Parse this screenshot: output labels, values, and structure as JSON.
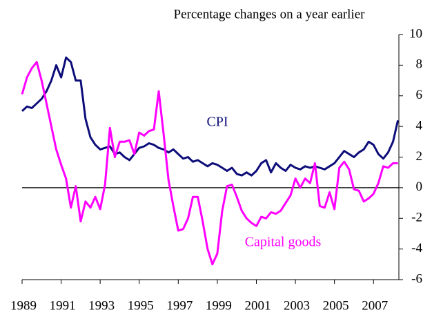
{
  "chart_data": {
    "type": "line",
    "title": "Percentage changes on a year earlier",
    "x": [
      1989,
      1989.25,
      1989.5,
      1989.75,
      1990,
      1990.25,
      1990.5,
      1990.75,
      1991,
      1991.25,
      1991.5,
      1991.75,
      1992,
      1992.25,
      1992.5,
      1992.75,
      1993,
      1993.25,
      1993.5,
      1993.75,
      1994,
      1994.25,
      1994.5,
      1994.75,
      1995,
      1995.25,
      1995.5,
      1995.75,
      1996,
      1996.25,
      1996.5,
      1996.75,
      1997,
      1997.25,
      1997.5,
      1997.75,
      1998,
      1998.25,
      1998.5,
      1998.75,
      1999,
      1999.25,
      1999.5,
      1999.75,
      2000,
      2000.25,
      2000.5,
      2000.75,
      2001,
      2001.25,
      2001.5,
      2001.75,
      2002,
      2002.25,
      2002.5,
      2002.75,
      2003,
      2003.25,
      2003.5,
      2003.75,
      2004,
      2004.25,
      2004.5,
      2004.75,
      2005,
      2005.25,
      2005.5,
      2005.75,
      2006,
      2006.25,
      2006.5,
      2006.75,
      2007,
      2007.25,
      2007.5,
      2007.75,
      2008,
      2008.25
    ],
    "series": [
      {
        "name": "CPI",
        "color": "#0d0d7a",
        "values": [
          5.0,
          5.3,
          5.2,
          5.5,
          5.8,
          6.3,
          7.0,
          8.0,
          7.2,
          8.5,
          8.2,
          7.0,
          7.0,
          4.5,
          3.3,
          2.8,
          2.5,
          2.6,
          2.7,
          2.2,
          2.3,
          2.0,
          1.8,
          2.2,
          2.6,
          2.7,
          2.9,
          2.8,
          2.6,
          2.5,
          2.3,
          2.5,
          2.2,
          1.9,
          2.0,
          1.7,
          1.8,
          1.6,
          1.4,
          1.6,
          1.5,
          1.3,
          1.1,
          1.3,
          0.9,
          0.8,
          1.0,
          0.8,
          1.1,
          1.6,
          1.8,
          1.0,
          1.6,
          1.3,
          1.1,
          1.5,
          1.3,
          1.2,
          1.4,
          1.3,
          1.4,
          1.3,
          1.2,
          1.4,
          1.6,
          2.0,
          2.4,
          2.2,
          2.0,
          2.3,
          2.5,
          3.0,
          2.8,
          2.2,
          1.9,
          2.3,
          3.0,
          4.4
        ]
      },
      {
        "name": "Capital goods",
        "color": "#ff00ff",
        "values": [
          6.1,
          7.2,
          7.8,
          8.2,
          7.0,
          5.5,
          4.0,
          2.5,
          1.5,
          0.6,
          -1.3,
          0.1,
          -2.2,
          -0.9,
          -1.3,
          -0.6,
          -1.4,
          0.2,
          3.9,
          2.0,
          3.0,
          3.0,
          3.1,
          2.2,
          3.6,
          3.4,
          3.7,
          3.8,
          6.3,
          3.5,
          0.5,
          -1.2,
          -2.8,
          -2.7,
          -2.0,
          -0.6,
          -0.6,
          -2.2,
          -4.0,
          -5.0,
          -4.3,
          -1.5,
          0.1,
          0.2,
          -0.6,
          -1.5,
          -2.0,
          -2.3,
          -2.5,
          -1.9,
          -2.0,
          -1.6,
          -1.7,
          -1.5,
          -1.0,
          -0.5,
          0.6,
          0.0,
          0.6,
          0.3,
          1.6,
          -1.2,
          -1.3,
          -0.3,
          -1.4,
          1.3,
          1.7,
          1.2,
          -0.1,
          -0.2,
          -0.9,
          -0.7,
          -0.4,
          0.3,
          1.4,
          1.3,
          1.6,
          1.6
        ]
      }
    ],
    "xlim": [
      1989,
      2008.3
    ],
    "xticks": [
      1989,
      1991,
      1993,
      1995,
      1997,
      1999,
      2001,
      2003,
      2005,
      2007
    ],
    "ylim": [
      -6,
      10
    ],
    "yticks": [
      10,
      8,
      6,
      4,
      2,
      0,
      -2,
      -4,
      -6
    ],
    "y_axis_side": "right",
    "zero_line": true
  }
}
